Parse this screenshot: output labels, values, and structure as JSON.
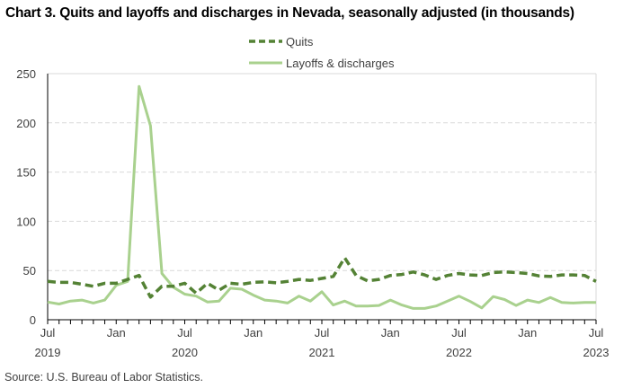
{
  "chart_data": {
    "type": "line",
    "title": "Chart 3. Quits and layoffs and discharges in Nevada, seasonally adjusted (in thousands)",
    "xlabel": "",
    "ylabel": "",
    "ylim": [
      0,
      250
    ],
    "yticks": [
      "0",
      "50",
      "100",
      "150",
      "200",
      "250"
    ],
    "ytick_values": [
      0,
      50,
      100,
      150,
      200,
      250
    ],
    "x_start": "2019-07",
    "x_months": 49,
    "xtick_labels": [
      {
        "month_index": 0,
        "label": "Jul",
        "year": "2019"
      },
      {
        "month_index": 6,
        "label": "Jan",
        "year": ""
      },
      {
        "month_index": 12,
        "label": "Jul",
        "year": "2020"
      },
      {
        "month_index": 18,
        "label": "Jan",
        "year": ""
      },
      {
        "month_index": 24,
        "label": "Jul",
        "year": "2021"
      },
      {
        "month_index": 30,
        "label": "Jan",
        "year": ""
      },
      {
        "month_index": 36,
        "label": "Jul",
        "year": "2022"
      },
      {
        "month_index": 42,
        "label": "Jan",
        "year": ""
      },
      {
        "month_index": 48,
        "label": "Jul",
        "year": "2023"
      }
    ],
    "grid": true,
    "legend_position": "top-center",
    "series": [
      {
        "name": "Quits",
        "color": "#548235",
        "style": "dashed",
        "values": [
          39,
          38,
          38,
          36,
          34,
          37,
          37,
          41,
          45,
          23,
          34,
          34,
          37,
          27,
          37,
          30,
          37,
          36,
          38,
          38.5,
          37.5,
          39,
          41,
          40,
          42,
          44,
          63,
          45,
          39.5,
          41,
          45,
          46,
          48.5,
          45.5,
          41,
          45,
          47,
          45.5,
          45,
          48,
          48.5,
          48,
          47,
          44.5,
          44,
          45.5,
          45.5,
          45,
          39
        ]
      },
      {
        "name": "Layoffs & discharges",
        "color": "#a9d18e",
        "style": "solid",
        "values": [
          18,
          16,
          19,
          20,
          17,
          20,
          35,
          39,
          237,
          197,
          47,
          33,
          26,
          24,
          18,
          19,
          32,
          31,
          25,
          20,
          19,
          17,
          24,
          19,
          28.5,
          15,
          19,
          14,
          14,
          14.5,
          20,
          15,
          11.5,
          11.5,
          14,
          19,
          24,
          18.5,
          12,
          23.5,
          20.5,
          14.5,
          20,
          17.5,
          22.5,
          17.5,
          17,
          17.5,
          17.5
        ]
      }
    ]
  },
  "source": "Source: U.S. Bureau of Labor Statistics."
}
